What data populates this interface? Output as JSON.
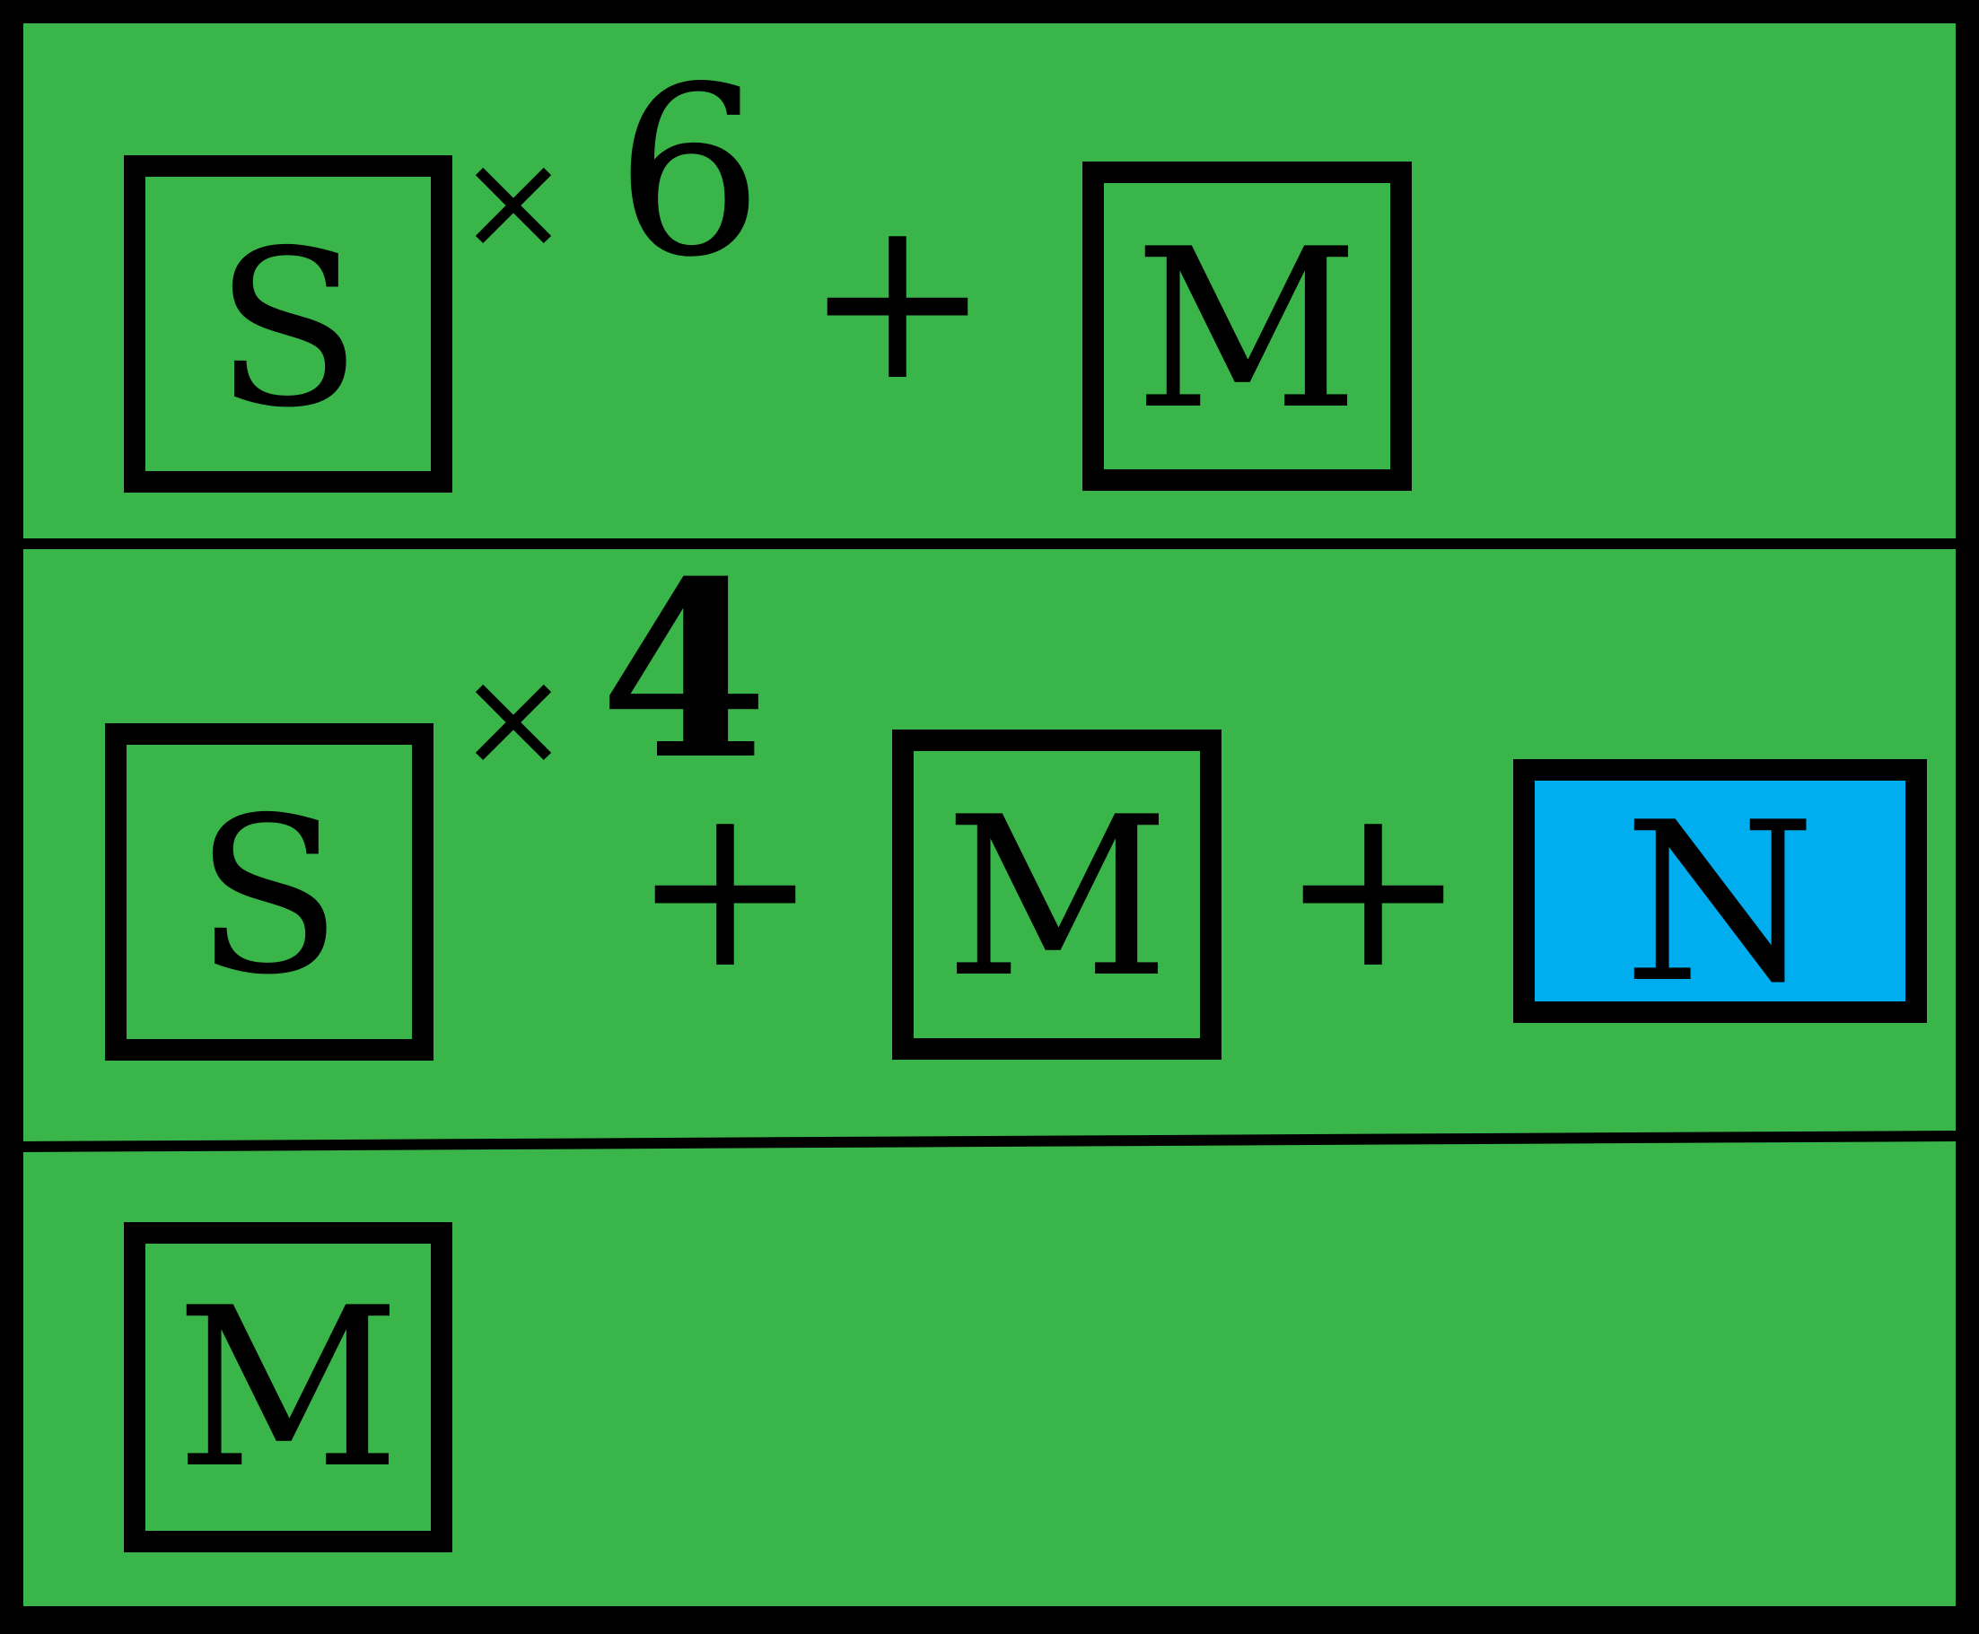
{
  "colors": {
    "background": "#3AB54A",
    "frame": "#000000",
    "highlight": "#00AEEF"
  },
  "rows": [
    {
      "box_s_letter": "S",
      "times_symbol": "×",
      "multiplier": "6",
      "plus_1": "+",
      "box_m_letter": "M"
    },
    {
      "box_s_letter": "S",
      "times_symbol": "×",
      "multiplier": "4",
      "plus_1": "+",
      "box_m_letter": "M",
      "plus_2": "+",
      "box_n_letter": "N"
    },
    {
      "box_m_letter": "M"
    }
  ]
}
